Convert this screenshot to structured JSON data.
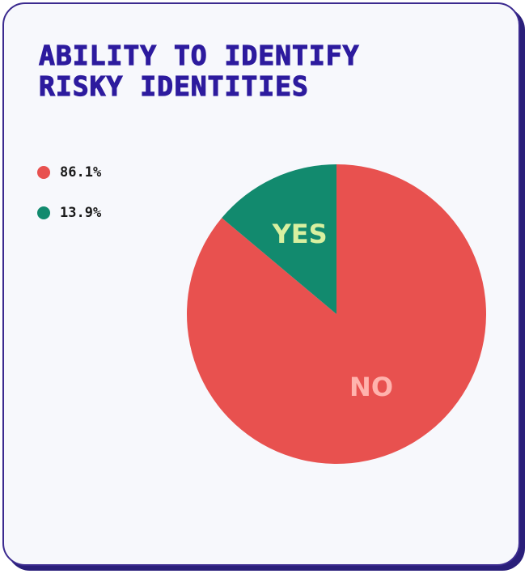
{
  "chart_data": {
    "type": "pie",
    "title": "ABILITY TO IDENTIFY RISKY IDENTITIES",
    "legend_position": "top-left",
    "slices": [
      {
        "label": "NO",
        "value": 86.1,
        "legend_text": "86.1%",
        "color": "#e8514f",
        "label_color": "#ffb3ad"
      },
      {
        "label": "YES",
        "value": 13.9,
        "legend_text": "13.9%",
        "color": "#128a6e",
        "label_color": "#d8f0a0"
      }
    ]
  }
}
